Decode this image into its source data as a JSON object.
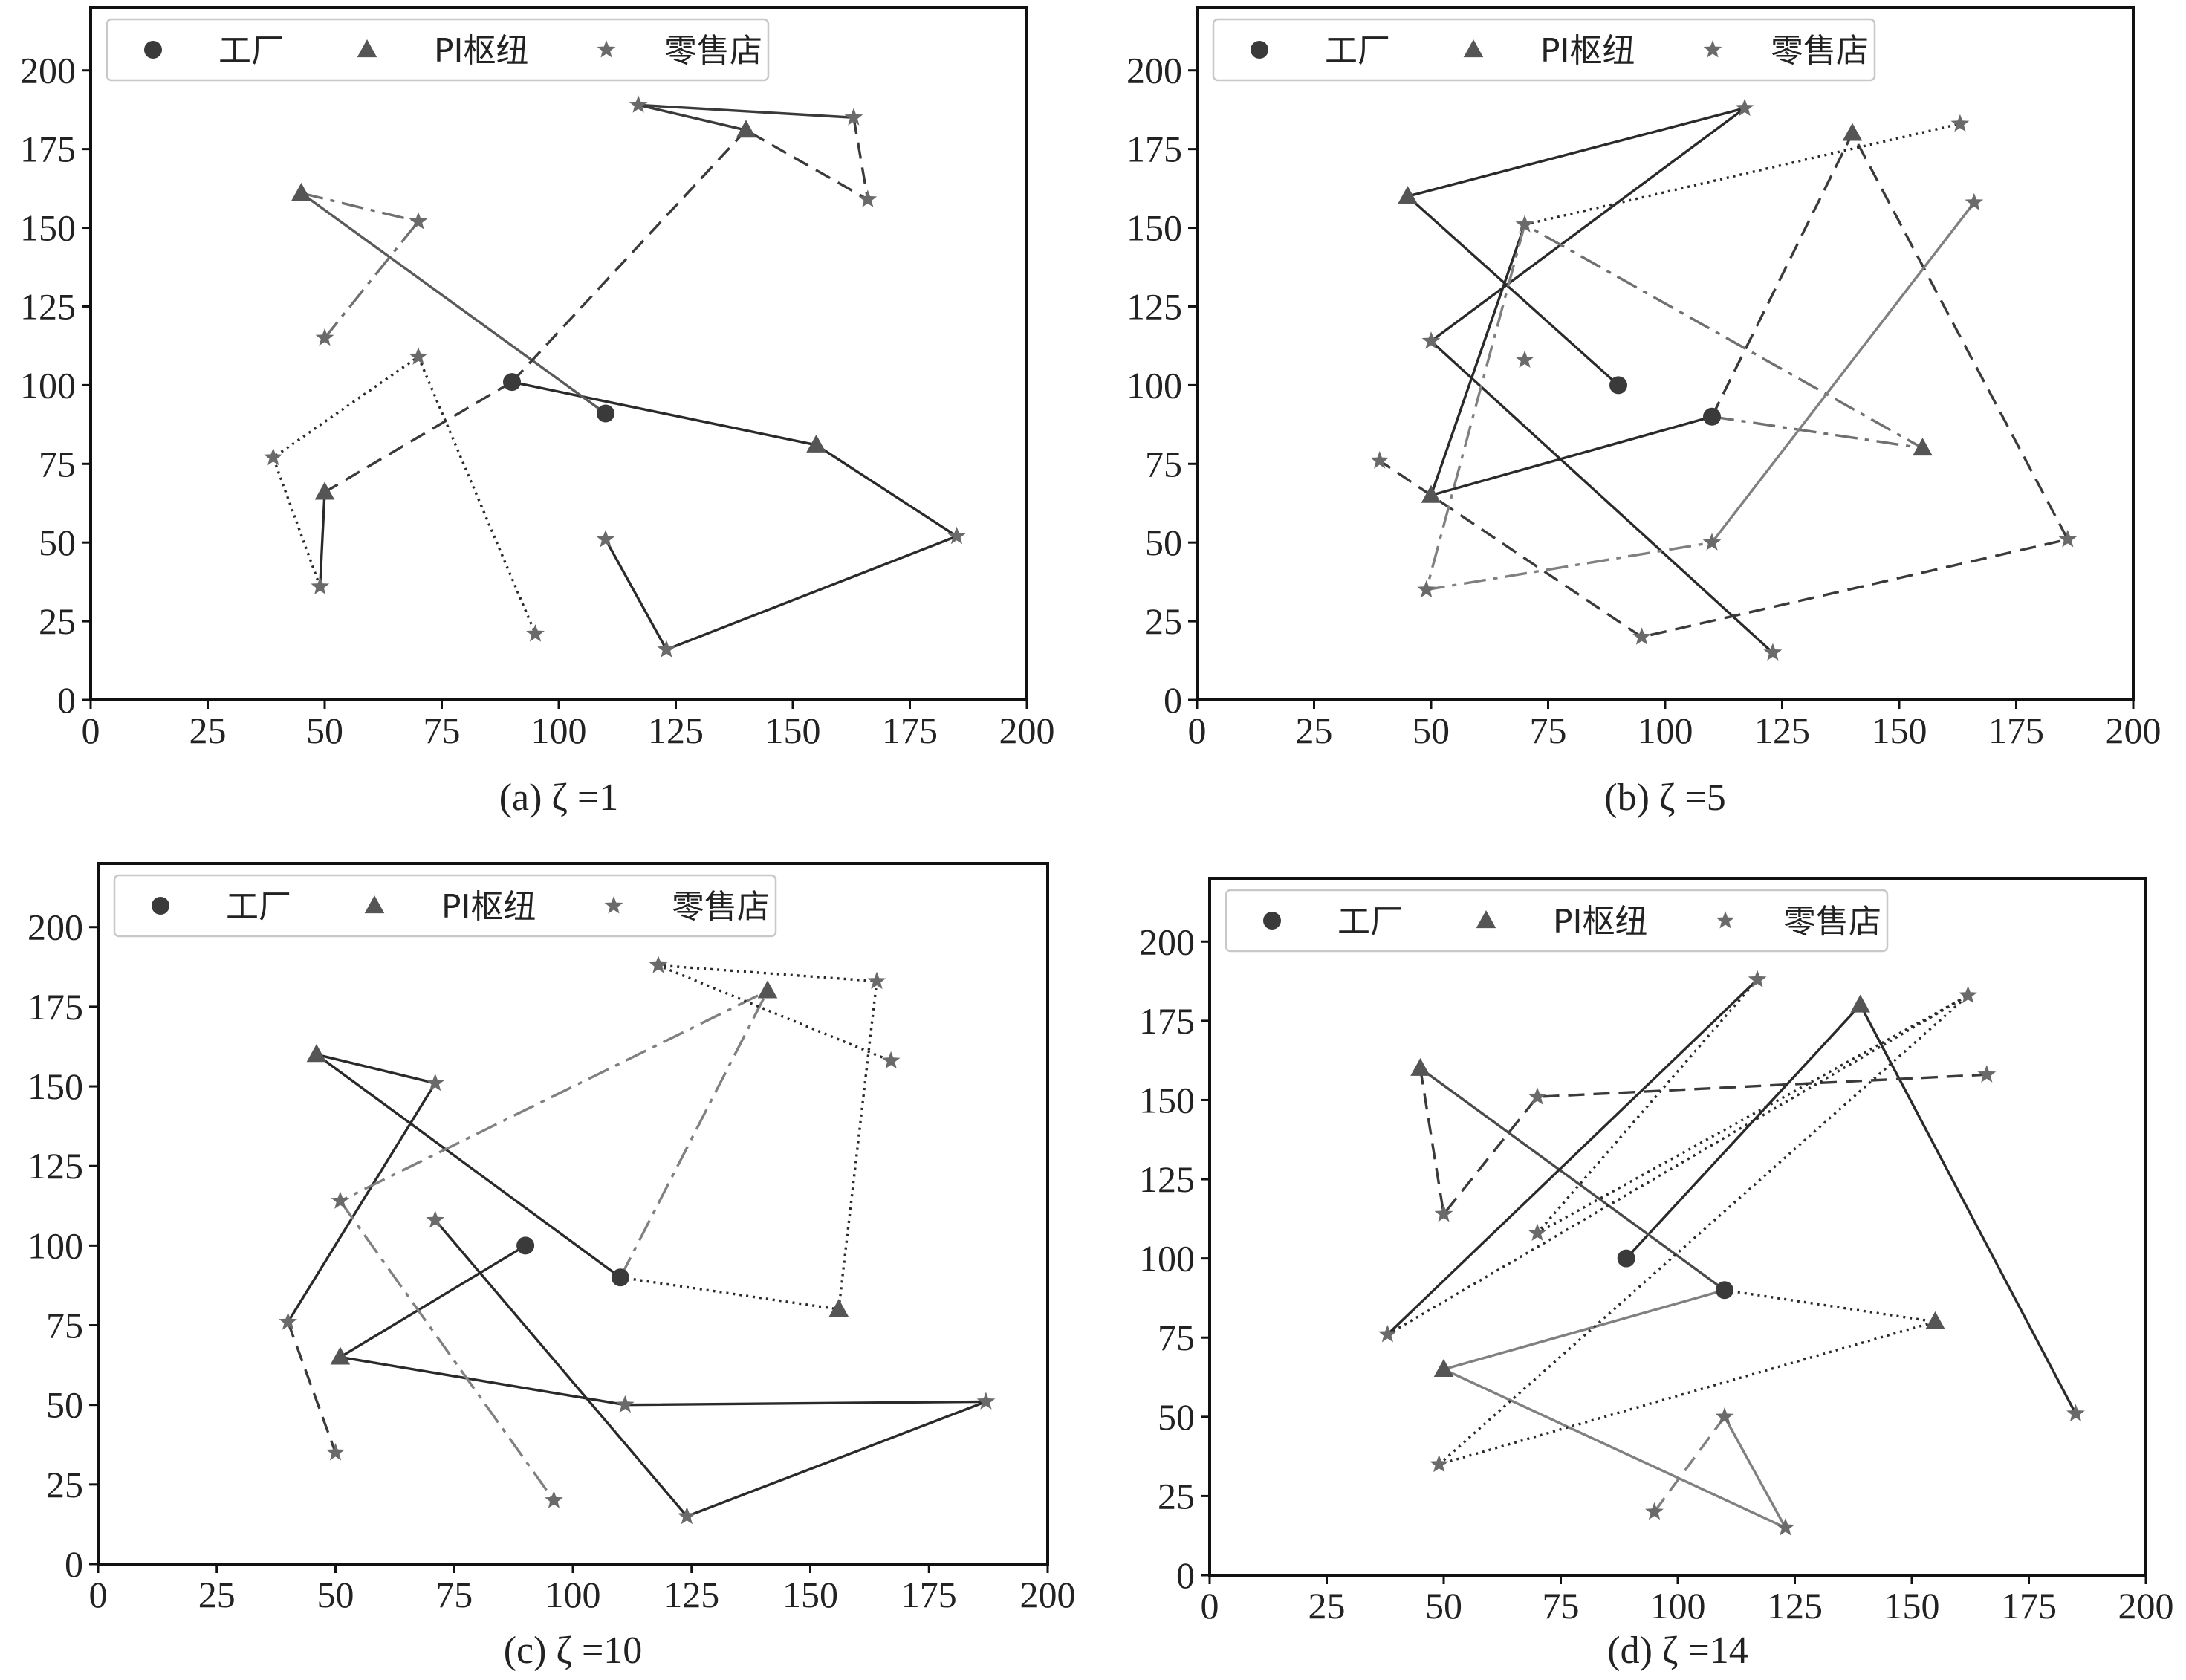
{
  "figure": {
    "legend": {
      "factory_label": "工厂",
      "hub_label": "PI枢纽",
      "retail_label": "零售店"
    }
  },
  "chart_data": [
    {
      "id": "a",
      "type": "scatter",
      "caption": "(a) ζ =1",
      "xlim": [
        0,
        200
      ],
      "ylim": [
        0,
        220
      ],
      "xticks": [
        0,
        25,
        50,
        75,
        100,
        125,
        150,
        175,
        200
      ],
      "yticks": [
        0,
        25,
        50,
        75,
        100,
        125,
        150,
        175,
        200
      ],
      "legend_position": "top-left",
      "factories": [
        [
          90,
          101
        ],
        [
          110,
          91
        ]
      ],
      "hubs": [
        [
          45,
          161
        ],
        [
          50,
          66
        ],
        [
          140,
          181
        ],
        [
          155,
          81
        ]
      ],
      "retailers": [
        [
          117,
          189
        ],
        [
          163,
          185
        ],
        [
          166,
          159
        ],
        [
          70,
          152
        ],
        [
          50,
          115
        ],
        [
          70,
          109
        ],
        [
          39,
          77
        ],
        [
          49,
          36
        ],
        [
          95,
          21
        ],
        [
          110,
          51
        ],
        [
          123,
          16
        ],
        [
          185,
          52
        ]
      ],
      "routes": [
        {
          "style": "solid",
          "color": "#2a2a2a",
          "points": [
            [
              90,
              101
            ],
            [
              155,
              81
            ],
            [
              185,
              52
            ],
            [
              123,
              16
            ],
            [
              110,
              51
            ]
          ]
        },
        {
          "style": "solid",
          "color": "#5a5a5a",
          "points": [
            [
              110,
              91
            ],
            [
              45,
              161
            ]
          ]
        },
        {
          "style": "dashdot",
          "color": "#707070",
          "points": [
            [
              45,
              161
            ],
            [
              70,
              152
            ],
            [
              50,
              115
            ]
          ]
        },
        {
          "style": "dashed",
          "color": "#3a3a3a",
          "points": [
            [
              90,
              101
            ],
            [
              140,
              181
            ]
          ]
        },
        {
          "style": "solid",
          "color": "#3a3a3a",
          "points": [
            [
              140,
              181
            ],
            [
              117,
              189
            ],
            [
              163,
              185
            ]
          ]
        },
        {
          "style": "dashed",
          "color": "#3a3a3a",
          "points": [
            [
              163,
              185
            ],
            [
              166,
              159
            ],
            [
              140,
              181
            ]
          ]
        },
        {
          "style": "dashed",
          "color": "#3a3a3a",
          "points": [
            [
              90,
              101
            ],
            [
              50,
              66
            ]
          ]
        },
        {
          "style": "solid",
          "color": "#2a2a2a",
          "points": [
            [
              50,
              66
            ],
            [
              49,
              36
            ]
          ]
        },
        {
          "style": "dotted",
          "color": "#2a2a2a",
          "points": [
            [
              49,
              36
            ],
            [
              39,
              77
            ],
            [
              70,
              109
            ],
            [
              95,
              21
            ]
          ]
        }
      ]
    },
    {
      "id": "b",
      "type": "scatter",
      "caption": "(b) ζ =5",
      "xlim": [
        0,
        200
      ],
      "ylim": [
        0,
        220
      ],
      "xticks": [
        0,
        25,
        50,
        75,
        100,
        125,
        150,
        175,
        200
      ],
      "yticks": [
        0,
        25,
        50,
        75,
        100,
        125,
        150,
        175,
        200
      ],
      "legend_position": "top-left",
      "factories": [
        [
          90,
          100
        ],
        [
          110,
          90
        ]
      ],
      "hubs": [
        [
          45,
          160
        ],
        [
          50,
          65
        ],
        [
          140,
          180
        ],
        [
          155,
          80
        ]
      ],
      "retailers": [
        [
          117,
          188
        ],
        [
          163,
          183
        ],
        [
          166,
          158
        ],
        [
          70,
          151
        ],
        [
          50,
          114
        ],
        [
          70,
          108
        ],
        [
          39,
          76
        ],
        [
          49,
          35
        ],
        [
          95,
          20
        ],
        [
          110,
          50
        ],
        [
          123,
          15
        ],
        [
          186,
          51
        ]
      ],
      "routes": [
        {
          "style": "solid",
          "color": "#2a2a2a",
          "points": [
            [
              90,
              100
            ],
            [
              45,
              160
            ],
            [
              117,
              188
            ],
            [
              50,
              114
            ],
            [
              123,
              15
            ]
          ]
        },
        {
          "style": "solid",
          "color": "#2a2a2a",
          "points": [
            [
              110,
              90
            ],
            [
              50,
              65
            ],
            [
              70,
              151
            ]
          ]
        },
        {
          "style": "dashed",
          "color": "#3a3a3a",
          "points": [
            [
              110,
              90
            ],
            [
              140,
              180
            ],
            [
              186,
              51
            ],
            [
              95,
              20
            ],
            [
              39,
              76
            ]
          ]
        },
        {
          "style": "dashdot",
          "color": "#707070",
          "points": [
            [
              110,
              90
            ],
            [
              155,
              80
            ],
            [
              70,
              151
            ]
          ]
        },
        {
          "style": "dotted",
          "color": "#2a2a2a",
          "points": [
            [
              70,
              151
            ],
            [
              163,
              183
            ]
          ]
        },
        {
          "style": "dashdot",
          "color": "#808080",
          "points": [
            [
              70,
              151
            ],
            [
              49,
              35
            ],
            [
              110,
              50
            ]
          ]
        },
        {
          "style": "solid",
          "color": "#808080",
          "points": [
            [
              110,
              50
            ],
            [
              166,
              158
            ]
          ]
        }
      ]
    },
    {
      "id": "c",
      "type": "scatter",
      "caption": "(c) ζ =10",
      "xlim": [
        0,
        200
      ],
      "ylim": [
        0,
        220
      ],
      "xticks": [
        0,
        25,
        50,
        75,
        100,
        125,
        150,
        175,
        200
      ],
      "yticks": [
        0,
        25,
        50,
        75,
        100,
        125,
        150,
        175,
        200
      ],
      "legend_position": "top-left",
      "factories": [
        [
          90,
          100
        ],
        [
          110,
          90
        ]
      ],
      "hubs": [
        [
          46,
          160
        ],
        [
          51,
          65
        ],
        [
          141,
          180
        ],
        [
          156,
          80
        ]
      ],
      "retailers": [
        [
          118,
          188
        ],
        [
          164,
          183
        ],
        [
          167,
          158
        ],
        [
          71,
          151
        ],
        [
          51,
          114
        ],
        [
          71,
          108
        ],
        [
          40,
          76
        ],
        [
          50,
          35
        ],
        [
          96,
          20
        ],
        [
          111,
          50
        ],
        [
          124,
          15
        ],
        [
          187,
          51
        ]
      ],
      "routes": [
        {
          "style": "solid",
          "color": "#2a2a2a",
          "points": [
            [
              90,
              100
            ],
            [
              51,
              65
            ],
            [
              111,
              50
            ],
            [
              187,
              51
            ],
            [
              124,
              15
            ],
            [
              71,
              108
            ]
          ]
        },
        {
          "style": "solid",
          "color": "#2a2a2a",
          "points": [
            [
              110,
              90
            ],
            [
              46,
              160
            ],
            [
              71,
              151
            ],
            [
              40,
              76
            ]
          ]
        },
        {
          "style": "dashed",
          "color": "#3a3a3a",
          "points": [
            [
              40,
              76
            ],
            [
              50,
              35
            ]
          ]
        },
        {
          "style": "dashdot",
          "color": "#808080",
          "points": [
            [
              110,
              90
            ],
            [
              141,
              180
            ],
            [
              51,
              114
            ]
          ]
        },
        {
          "style": "dashdot",
          "color": "#808080",
          "points": [
            [
              51,
              114
            ],
            [
              96,
              20
            ]
          ]
        },
        {
          "style": "dotted",
          "color": "#2a2a2a",
          "points": [
            [
              110,
              90
            ],
            [
              156,
              80
            ],
            [
              164,
              183
            ],
            [
              118,
              188
            ],
            [
              167,
              158
            ]
          ]
        }
      ]
    },
    {
      "id": "d",
      "type": "scatter",
      "caption": "(d) ζ =14",
      "xlim": [
        0,
        200
      ],
      "ylim": [
        0,
        220
      ],
      "xticks": [
        0,
        25,
        50,
        75,
        100,
        125,
        150,
        175,
        200
      ],
      "yticks": [
        0,
        25,
        50,
        75,
        100,
        125,
        150,
        175,
        200
      ],
      "legend_position": "top-left",
      "factories": [
        [
          89,
          100
        ],
        [
          110,
          90
        ]
      ],
      "hubs": [
        [
          45,
          160
        ],
        [
          50,
          65
        ],
        [
          139,
          180
        ],
        [
          155,
          80
        ]
      ],
      "retailers": [
        [
          117,
          188
        ],
        [
          162,
          183
        ],
        [
          166,
          158
        ],
        [
          70,
          151
        ],
        [
          50,
          114
        ],
        [
          70,
          108
        ],
        [
          38,
          76
        ],
        [
          49,
          35
        ],
        [
          95,
          20
        ],
        [
          110,
          50
        ],
        [
          123,
          15
        ],
        [
          185,
          51
        ]
      ],
      "routes": [
        {
          "style": "solid",
          "color": "#2a2a2a",
          "points": [
            [
              89,
              100
            ],
            [
              139,
              180
            ],
            [
              185,
              51
            ]
          ]
        },
        {
          "style": "solid",
          "color": "#4a4a4a",
          "points": [
            [
              110,
              90
            ],
            [
              45,
              160
            ]
          ]
        },
        {
          "style": "dashed",
          "color": "#3a3a3a",
          "points": [
            [
              45,
              160
            ],
            [
              50,
              114
            ],
            [
              70,
              151
            ],
            [
              166,
              158
            ]
          ]
        },
        {
          "style": "solid",
          "color": "#808080",
          "points": [
            [
              110,
              90
            ],
            [
              50,
              65
            ],
            [
              123,
              15
            ],
            [
              110,
              50
            ]
          ]
        },
        {
          "style": "dashed",
          "color": "#808080",
          "points": [
            [
              110,
              50
            ],
            [
              95,
              20
            ]
          ]
        },
        {
          "style": "dotted",
          "color": "#2a2a2a",
          "points": [
            [
              110,
              90
            ],
            [
              155,
              80
            ],
            [
              49,
              35
            ],
            [
              162,
              183
            ],
            [
              38,
              76
            ]
          ]
        },
        {
          "style": "solid",
          "color": "#2a2a2a",
          "points": [
            [
              38,
              76
            ],
            [
              117,
              188
            ]
          ]
        },
        {
          "style": "dotted",
          "color": "#2a2a2a",
          "points": [
            [
              117,
              188
            ],
            [
              70,
              108
            ],
            [
              162,
              183
            ]
          ]
        }
      ]
    }
  ]
}
